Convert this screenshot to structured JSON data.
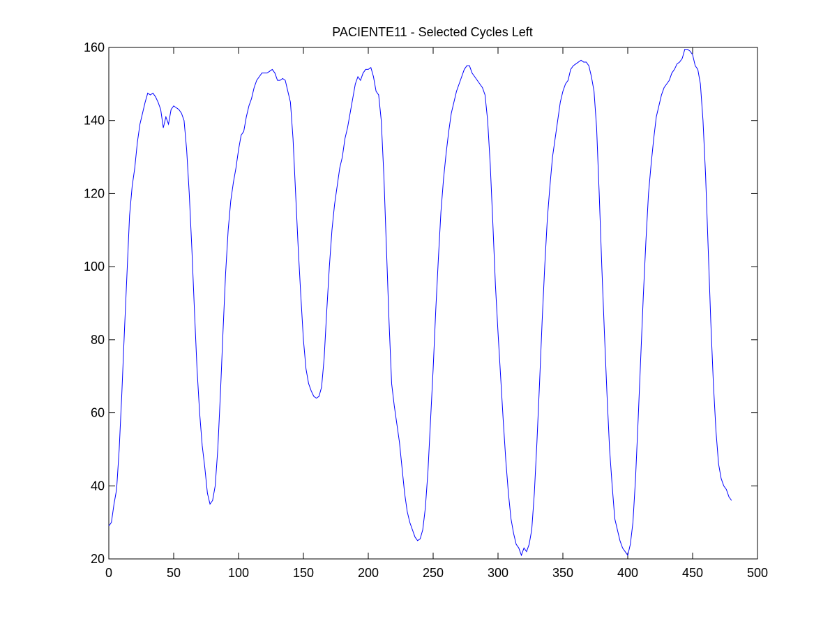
{
  "chart_data": {
    "type": "line",
    "title": "PACIENTE11 - Selected Cycles Left",
    "xlabel": "",
    "ylabel": "",
    "xlim": [
      0,
      500
    ],
    "ylim": [
      20,
      160
    ],
    "x_ticks": [
      "0",
      "50",
      "100",
      "150",
      "200",
      "250",
      "300",
      "350",
      "400",
      "450",
      "500"
    ],
    "y_ticks": [
      "20",
      "40",
      "60",
      "80",
      "100",
      "120",
      "140",
      "160"
    ],
    "grid": false,
    "line_color": "#0000ff",
    "series": [
      {
        "name": "",
        "points": [
          [
            0,
            29
          ],
          [
            2,
            30
          ],
          [
            4,
            35
          ],
          [
            6,
            39
          ],
          [
            8,
            50
          ],
          [
            10,
            65
          ],
          [
            12,
            82
          ],
          [
            14,
            98
          ],
          [
            16,
            114
          ],
          [
            18,
            122
          ],
          [
            20,
            127
          ],
          [
            22,
            134
          ],
          [
            24,
            139
          ],
          [
            26,
            142
          ],
          [
            28,
            145
          ],
          [
            30,
            147.5
          ],
          [
            32,
            147
          ],
          [
            34,
            147.5
          ],
          [
            36,
            146.5
          ],
          [
            38,
            145
          ],
          [
            40,
            143
          ],
          [
            42,
            138
          ],
          [
            44,
            141
          ],
          [
            46,
            139
          ],
          [
            48,
            143
          ],
          [
            50,
            144
          ],
          [
            52,
            143.5
          ],
          [
            54,
            143
          ],
          [
            56,
            142
          ],
          [
            58,
            140
          ],
          [
            60,
            132
          ],
          [
            62,
            120
          ],
          [
            64,
            105
          ],
          [
            66,
            88
          ],
          [
            68,
            72
          ],
          [
            70,
            60
          ],
          [
            72,
            51
          ],
          [
            74,
            45
          ],
          [
            76,
            38
          ],
          [
            78,
            35
          ],
          [
            80,
            36
          ],
          [
            82,
            40
          ],
          [
            84,
            50
          ],
          [
            86,
            65
          ],
          [
            88,
            82
          ],
          [
            90,
            98
          ],
          [
            92,
            110
          ],
          [
            94,
            118
          ],
          [
            96,
            123
          ],
          [
            98,
            127
          ],
          [
            100,
            132
          ],
          [
            102,
            136
          ],
          [
            104,
            137
          ],
          [
            106,
            141
          ],
          [
            108,
            144
          ],
          [
            110,
            146
          ],
          [
            112,
            149
          ],
          [
            114,
            151
          ],
          [
            116,
            152
          ],
          [
            118,
            153
          ],
          [
            120,
            153
          ],
          [
            122,
            153
          ],
          [
            124,
            153.5
          ],
          [
            126,
            154
          ],
          [
            128,
            153
          ],
          [
            130,
            151
          ],
          [
            132,
            151
          ],
          [
            134,
            151.5
          ],
          [
            136,
            151
          ],
          [
            138,
            148
          ],
          [
            140,
            145
          ],
          [
            142,
            135
          ],
          [
            144,
            120
          ],
          [
            146,
            105
          ],
          [
            148,
            92
          ],
          [
            150,
            80
          ],
          [
            152,
            72
          ],
          [
            154,
            68
          ],
          [
            156,
            66
          ],
          [
            158,
            64.5
          ],
          [
            160,
            64
          ],
          [
            162,
            64.5
          ],
          [
            164,
            67
          ],
          [
            166,
            75
          ],
          [
            168,
            88
          ],
          [
            170,
            100
          ],
          [
            172,
            110
          ],
          [
            174,
            117
          ],
          [
            176,
            122
          ],
          [
            178,
            127
          ],
          [
            180,
            130
          ],
          [
            182,
            135
          ],
          [
            184,
            138
          ],
          [
            186,
            142
          ],
          [
            188,
            146
          ],
          [
            190,
            150
          ],
          [
            192,
            152
          ],
          [
            194,
            151
          ],
          [
            196,
            153
          ],
          [
            198,
            154
          ],
          [
            200,
            154
          ],
          [
            202,
            154.5
          ],
          [
            204,
            152
          ],
          [
            206,
            148
          ],
          [
            208,
            147
          ],
          [
            210,
            140
          ],
          [
            212,
            125
          ],
          [
            214,
            105
          ],
          [
            216,
            85
          ],
          [
            218,
            68
          ],
          [
            220,
            62
          ],
          [
            222,
            57
          ],
          [
            224,
            52
          ],
          [
            226,
            45
          ],
          [
            228,
            38
          ],
          [
            230,
            33
          ],
          [
            232,
            30
          ],
          [
            234,
            28
          ],
          [
            236,
            26
          ],
          [
            238,
            25
          ],
          [
            240,
            25.5
          ],
          [
            242,
            28
          ],
          [
            244,
            34
          ],
          [
            246,
            44
          ],
          [
            248,
            58
          ],
          [
            250,
            72
          ],
          [
            252,
            88
          ],
          [
            254,
            102
          ],
          [
            256,
            115
          ],
          [
            258,
            124
          ],
          [
            260,
            131
          ],
          [
            262,
            137
          ],
          [
            264,
            142
          ],
          [
            266,
            145
          ],
          [
            268,
            148
          ],
          [
            270,
            150
          ],
          [
            272,
            152
          ],
          [
            274,
            154
          ],
          [
            276,
            155
          ],
          [
            278,
            155
          ],
          [
            280,
            153
          ],
          [
            282,
            152
          ],
          [
            284,
            151
          ],
          [
            286,
            150
          ],
          [
            288,
            149
          ],
          [
            290,
            147
          ],
          [
            292,
            140
          ],
          [
            294,
            128
          ],
          [
            296,
            112
          ],
          [
            298,
            95
          ],
          [
            300,
            82
          ],
          [
            302,
            70
          ],
          [
            304,
            58
          ],
          [
            306,
            47
          ],
          [
            308,
            38
          ],
          [
            310,
            31
          ],
          [
            312,
            27
          ],
          [
            314,
            24
          ],
          [
            316,
            23
          ],
          [
            318,
            21
          ],
          [
            320,
            23
          ],
          [
            322,
            22
          ],
          [
            324,
            24
          ],
          [
            326,
            28
          ],
          [
            328,
            38
          ],
          [
            330,
            52
          ],
          [
            332,
            68
          ],
          [
            334,
            85
          ],
          [
            336,
            100
          ],
          [
            338,
            113
          ],
          [
            340,
            122
          ],
          [
            342,
            130
          ],
          [
            344,
            135
          ],
          [
            346,
            140
          ],
          [
            348,
            145
          ],
          [
            350,
            148
          ],
          [
            352,
            150
          ],
          [
            354,
            151
          ],
          [
            356,
            154
          ],
          [
            358,
            155
          ],
          [
            360,
            155.5
          ],
          [
            362,
            156
          ],
          [
            364,
            156.5
          ],
          [
            366,
            156
          ],
          [
            368,
            156
          ],
          [
            370,
            155
          ],
          [
            372,
            152
          ],
          [
            374,
            148
          ],
          [
            376,
            138
          ],
          [
            378,
            120
          ],
          [
            380,
            100
          ],
          [
            382,
            82
          ],
          [
            384,
            65
          ],
          [
            386,
            50
          ],
          [
            388,
            40
          ],
          [
            390,
            31
          ],
          [
            392,
            28
          ],
          [
            394,
            25
          ],
          [
            396,
            23
          ],
          [
            398,
            22
          ],
          [
            400,
            21
          ],
          [
            402,
            24
          ],
          [
            404,
            30
          ],
          [
            406,
            42
          ],
          [
            408,
            58
          ],
          [
            410,
            75
          ],
          [
            412,
            92
          ],
          [
            414,
            107
          ],
          [
            416,
            120
          ],
          [
            418,
            128
          ],
          [
            420,
            135
          ],
          [
            422,
            141
          ],
          [
            424,
            144
          ],
          [
            426,
            147
          ],
          [
            428,
            149
          ],
          [
            430,
            150
          ],
          [
            432,
            151
          ],
          [
            434,
            153
          ],
          [
            436,
            154
          ],
          [
            438,
            155.5
          ],
          [
            440,
            156
          ],
          [
            442,
            157
          ],
          [
            444,
            159.5
          ],
          [
            446,
            159.5
          ],
          [
            448,
            159
          ],
          [
            450,
            158
          ],
          [
            452,
            155
          ],
          [
            454,
            154
          ],
          [
            456,
            150
          ],
          [
            458,
            140
          ],
          [
            460,
            125
          ],
          [
            462,
            105
          ],
          [
            464,
            85
          ],
          [
            466,
            68
          ],
          [
            468,
            55
          ],
          [
            470,
            46
          ],
          [
            472,
            42
          ],
          [
            474,
            40
          ],
          [
            476,
            39
          ],
          [
            478,
            37
          ],
          [
            480,
            36
          ]
        ]
      }
    ]
  }
}
